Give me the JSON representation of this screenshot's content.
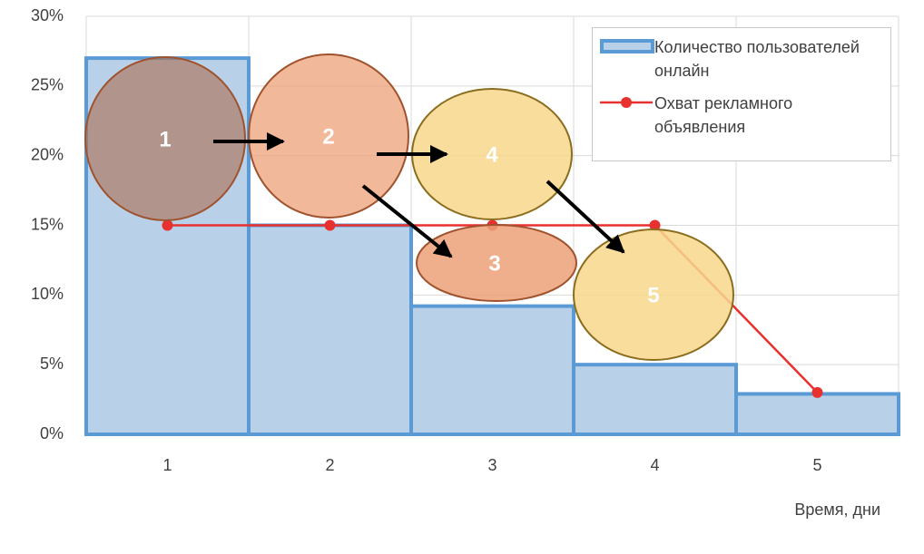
{
  "chart_data": {
    "type": "bar",
    "categories": [
      "1",
      "2",
      "3",
      "4",
      "5"
    ],
    "series": [
      {
        "name": "Количество пользователей онлайн",
        "type": "bar",
        "color": "#5b9bd5",
        "fill": "#b8d0e8",
        "values": [
          27,
          15,
          9.2,
          5,
          2.9
        ]
      },
      {
        "name": "Охват рекламного объявления",
        "type": "line",
        "color": "#e8302e",
        "values": [
          15,
          15,
          15,
          15,
          3
        ]
      }
    ],
    "ylim": [
      0,
      30
    ],
    "yticks": [
      {
        "value": 0,
        "label": "0%"
      },
      {
        "value": 5,
        "label": "5%"
      },
      {
        "value": 10,
        "label": "10%"
      },
      {
        "value": 15,
        "label": "15%"
      },
      {
        "value": 20,
        "label": "20%"
      },
      {
        "value": 25,
        "label": "25%"
      },
      {
        "value": 30,
        "label": "30%"
      }
    ],
    "x_label": "Время, дни",
    "grid": true,
    "legend": "top-right",
    "annotations": [
      "1",
      "2",
      "3",
      "4",
      "5"
    ]
  }
}
